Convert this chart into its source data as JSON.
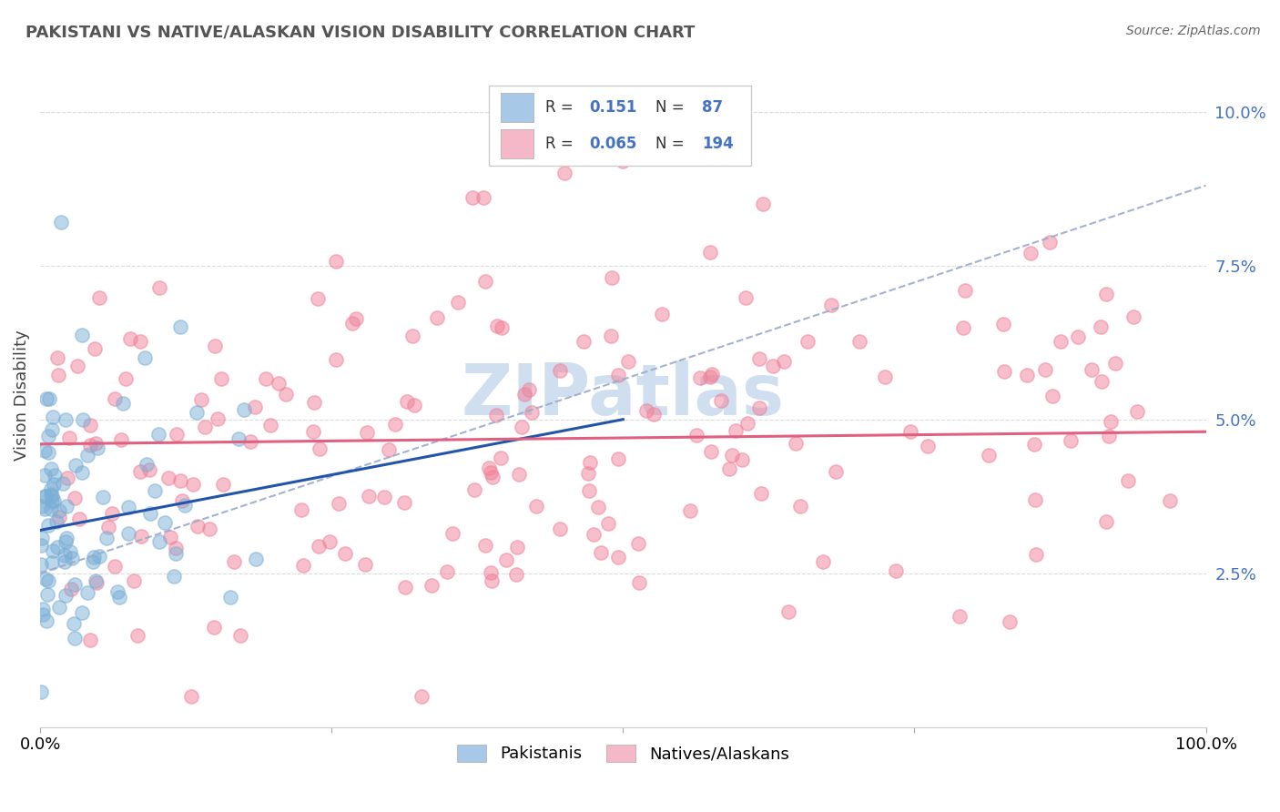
{
  "title": "PAKISTANI VS NATIVE/ALASKAN VISION DISABILITY CORRELATION CHART",
  "source": "Source: ZipAtlas.com",
  "ylabel": "Vision Disability",
  "yticks": [
    0.025,
    0.05,
    0.075,
    0.1
  ],
  "ytick_labels": [
    "2.5%",
    "5.0%",
    "7.5%",
    "10.0%"
  ],
  "xlim": [
    0.0,
    1.0
  ],
  "ylim": [
    0.0,
    0.108
  ],
  "pakistani_N": 87,
  "native_N": 194,
  "pakistani_dot_color": "#7aaed6",
  "native_dot_color": "#f08098",
  "trend_pakistani_color": "#2255aa",
  "trend_native_color": "#e06080",
  "trend_dashed_color": "#99aacc",
  "watermark": "ZIPatlas",
  "watermark_color": "#d0dff0",
  "legend_label_pakistani": "Pakistanis",
  "legend_label_native": "Natives/Alaskans",
  "background_color": "#ffffff",
  "grid_color": "#dddddd",
  "ytick_color": "#4472c4",
  "legend_blue_patch": "#a8c8e8",
  "legend_pink_patch": "#f4b8c8"
}
